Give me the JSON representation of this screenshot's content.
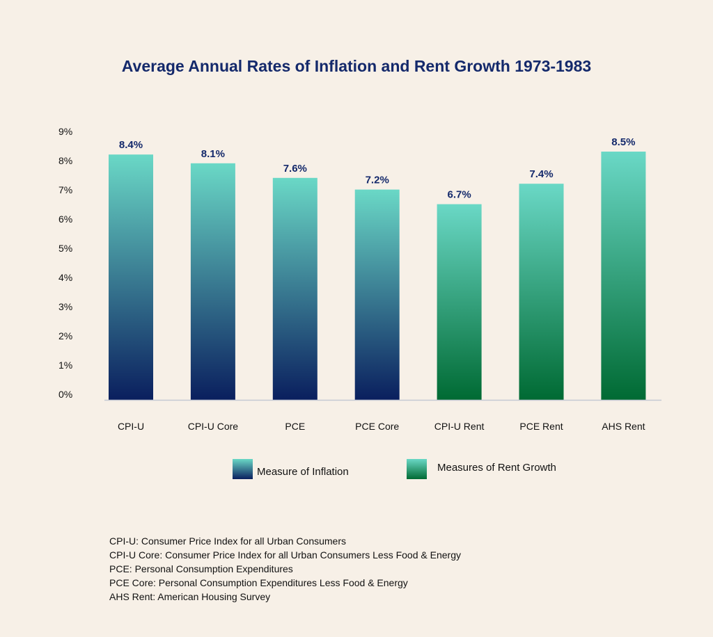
{
  "chart_data": {
    "type": "bar",
    "title": "Average Annual Rates of Inflation and Rent Growth 1973-1983",
    "categories": [
      "CPI-U",
      "CPI-U Core",
      "PCE",
      "PCE Core",
      "CPI-U Rent",
      "PCE Rent",
      "AHS Rent"
    ],
    "values": [
      8.4,
      8.1,
      7.6,
      7.2,
      6.7,
      7.4,
      8.5
    ],
    "data_labels": [
      "8.4%",
      "8.1%",
      "7.6%",
      "7.2%",
      "6.7%",
      "7.4%",
      "8.5%"
    ],
    "groups": [
      "inflation",
      "inflation",
      "inflation",
      "inflation",
      "rent",
      "rent",
      "rent"
    ],
    "ylim": [
      0,
      9
    ],
    "yticks": [
      "0%",
      "1%",
      "2%",
      "3%",
      "4%",
      "5%",
      "6%",
      "7%",
      "8%",
      "9%"
    ],
    "grid": false,
    "legend_placement": "bottom",
    "legend": [
      {
        "key": "inflation",
        "label": "Measure of Inflation"
      },
      {
        "key": "rent",
        "label": "Measures of Rent Growth"
      }
    ],
    "colors": {
      "inflation_top": "#6ad8c6",
      "inflation_bottom": "#0a1f5e",
      "rent_top": "#6ad8c6",
      "rent_bottom": "#006a33",
      "label": "#14296b"
    }
  },
  "notes": [
    "CPI-U: Consumer Price Index for all Urban Consumers",
    "CPI-U Core: Consumer Price Index for all Urban Consumers Less Food & Energy",
    "PCE: Personal Consumption Expenditures",
    "PCE Core: Personal Consumption Expenditures Less Food & Energy",
    "AHS Rent: American Housing Survey"
  ]
}
